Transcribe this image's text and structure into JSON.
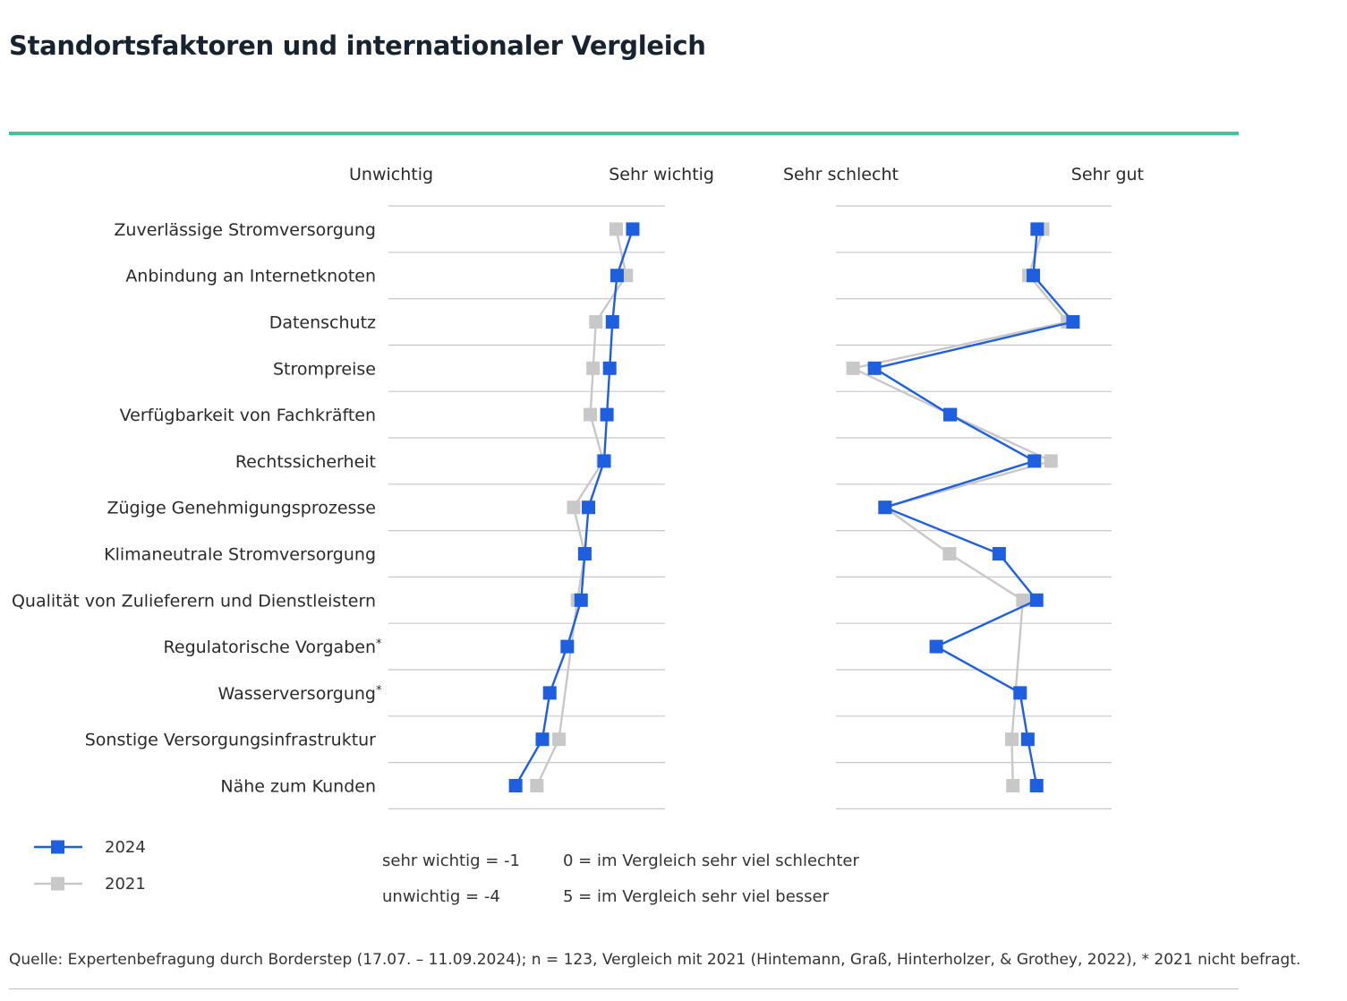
{
  "title": "Standortsfaktoren und internationaler Vergleich",
  "colors": {
    "accent_rule": "#3cc79a",
    "series_2024": "#1e5fe0",
    "series_2021": "#c8c8c8",
    "grid": "#c8c8c8"
  },
  "chart_data": [
    {
      "type": "line",
      "orientation": "horizontal-dot-plot",
      "axis_left_label": "Unwichtig",
      "axis_right_label": "Sehr wichtig",
      "xlim": [
        -4,
        -1
      ],
      "categories": [
        "Zuverlässige Stromversorgung",
        "Anbindung an Internetknoten",
        "Datenschutz",
        "Strompreise",
        "Verfügbarkeit von Fachkräften",
        "Rechtssicherheit",
        "Zügige Genehmigungsprozesse",
        "Klimaneutrale Stromversorgung",
        "Qualität von Zulieferern und Dienstleistern",
        "Regulatorische Vorgaben*",
        "Wasserversorgung*",
        "Sonstige Versorgungsinfrastruktur",
        "Nähe zum Kunden"
      ],
      "series": [
        {
          "name": "2024",
          "values": [
            -1.35,
            -1.52,
            -1.57,
            -1.6,
            -1.63,
            -1.66,
            -1.83,
            -1.87,
            -1.91,
            -2.06,
            -2.25,
            -2.33,
            -2.62
          ]
        },
        {
          "name": "2021",
          "values": [
            -1.53,
            -1.42,
            -1.75,
            -1.78,
            -1.81,
            -1.67,
            -1.99,
            -1.87,
            -1.95,
            null,
            null,
            -2.15,
            -2.39
          ]
        }
      ]
    },
    {
      "type": "line",
      "orientation": "horizontal-dot-plot",
      "axis_left_label": "Sehr schlecht",
      "axis_right_label": "Sehr gut",
      "xlim": [
        0,
        5
      ],
      "categories": [
        "Zuverlässige Stromversorgung",
        "Anbindung an Internetknoten",
        "Datenschutz",
        "Strompreise",
        "Verfügbarkeit von Fachkräften",
        "Rechtssicherheit",
        "Zügige Genehmigungsprozesse",
        "Klimaneutrale Stromversorgung",
        "Qualität von Zulieferern und Dienstleistern",
        "Regulatorische Vorgaben*",
        "Wasserversorgung*",
        "Sonstige Versorgungsinfrastruktur",
        "Nähe zum Kunden"
      ],
      "series": [
        {
          "name": "2024",
          "values": [
            3.65,
            3.58,
            4.3,
            0.7,
            2.07,
            3.6,
            0.89,
            2.96,
            3.64,
            1.82,
            3.34,
            3.48,
            3.64
          ]
        },
        {
          "name": "2021",
          "values": [
            3.75,
            3.5,
            4.2,
            0.31,
            2.08,
            3.9,
            0.89,
            2.06,
            3.39,
            null,
            null,
            3.19,
            3.21
          ]
        }
      ]
    }
  ],
  "legend": [
    {
      "name": "2024"
    },
    {
      "name": "2021"
    }
  ],
  "notes_left": [
    "sehr wichtig = -1",
    "unwichtig = -4"
  ],
  "notes_right": [
    "0 = im Vergleich sehr viel schlechter",
    "5 = im Vergleich sehr viel besser"
  ],
  "source": "Quelle: Expertenbefragung durch Borderstep (17.07. – 11.09.2024); n = 123, Vergleich mit 2021 (Hintemann, Graß, Hinterholzer, & Grothey, 2022), * 2021 nicht befragt."
}
